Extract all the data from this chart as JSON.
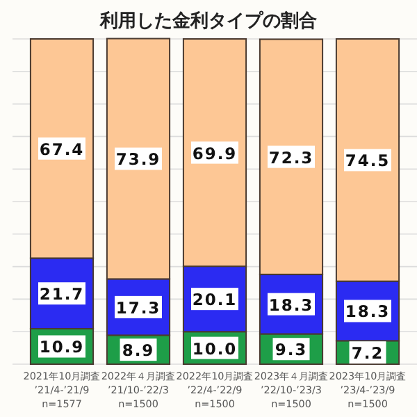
{
  "chart_data": {
    "type": "bar",
    "title": "利用した金利タイプの割合",
    "stacked": true,
    "data_labels": true,
    "grid": "y",
    "tick_labels": "x",
    "categories": [
      "2021年10月調査\n’21/4-’21/9\nn=1577",
      "2022年４月調査\n’21/10-’22/3\nn=1500",
      "2022年10月調査\n’22/4-’22/9\nn=1500",
      "2023年４月調査\n’22/10-’23/3\nn=1500",
      "2023年10月調査\n’23/4-’23/9\nn=1500"
    ],
    "ylim": [
      0,
      100
    ],
    "yticks": [
      {
        "value": 0,
        "label": null
      },
      {
        "value": 10,
        "label": null
      },
      {
        "value": 20,
        "label": null
      },
      {
        "value": 30,
        "label": null
      },
      {
        "value": 40,
        "label": null
      },
      {
        "value": 50,
        "label": null
      },
      {
        "value": 60,
        "label": null
      },
      {
        "value": 70,
        "label": null
      },
      {
        "value": 80,
        "label": null
      },
      {
        "value": 90,
        "label": null
      },
      {
        "value": 100,
        "label": null
      }
    ],
    "series": [
      {
        "color": "#1e9e48",
        "values": [
          10.9,
          8.9,
          10.0,
          9.3,
          7.2
        ],
        "value_labels": [
          "10.9",
          "8.9",
          "10.0",
          "9.3",
          "7.2"
        ]
      },
      {
        "color": "#2b2bf2",
        "values": [
          21.7,
          17.3,
          20.1,
          18.3,
          18.3
        ]
      },
      {
        "color": "#fdc795",
        "values": [
          67.4,
          73.9,
          69.9,
          72.3,
          74.5
        ]
      }
    ]
  }
}
